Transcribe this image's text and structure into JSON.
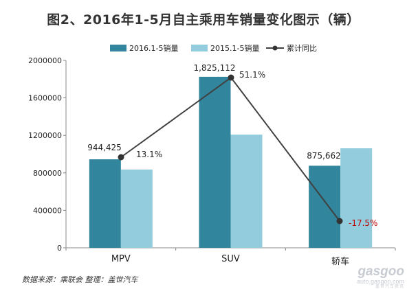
{
  "title": "图2、2016年1-5月自主乘用车销量变化图示（辆）",
  "source": "数据来源：乘联会 整理：盖世汽车",
  "watermark": {
    "brand": "gasgoo",
    "url": "auto.gasgoo.com",
    "cn": "盖世汽车资讯"
  },
  "colors": {
    "series_2016": "#31859c",
    "series_2015": "#93cddd",
    "line": "#404040",
    "negative_label": "#c00000"
  },
  "chart_data": {
    "type": "bar",
    "title": "图2、2016年1-5月自主乘用车销量变化图示（辆）",
    "xlabel": "",
    "ylabel": "",
    "categories": [
      "MPV",
      "SUV",
      "轿车"
    ],
    "ylim": [
      0,
      2000000
    ],
    "yticks": [
      "0",
      "400000",
      "800000",
      "1200000",
      "1600000",
      "2000000"
    ],
    "grid": false,
    "legend_position": "top",
    "series": [
      {
        "name": "2016.1-5销量",
        "values": [
          944425,
          1825112,
          875662
        ],
        "data_labels": [
          "944,425",
          "1,825,112",
          "875,662"
        ]
      },
      {
        "name": "2015.1-5销量",
        "values": [
          835000,
          1208000,
          1062000
        ]
      }
    ],
    "line_series": {
      "name": "累计同比",
      "values": [
        13.1,
        51.1,
        -17.5
      ],
      "data_labels": [
        "13.1%",
        "51.1%",
        "-17.5%"
      ]
    }
  }
}
